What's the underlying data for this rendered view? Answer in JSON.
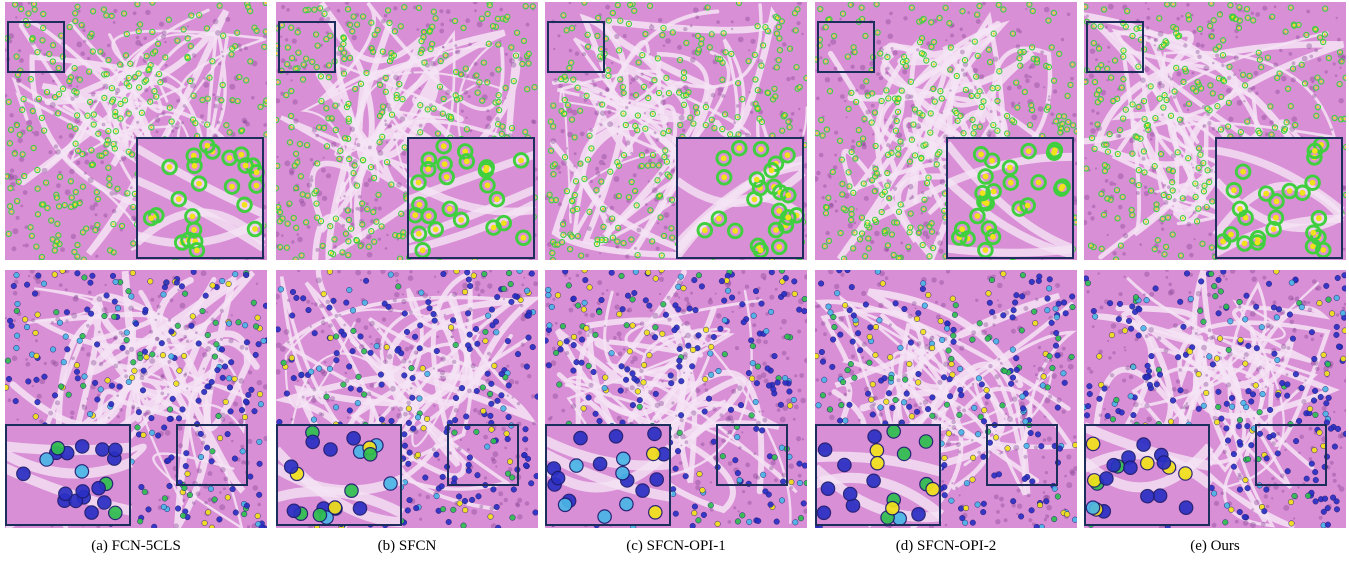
{
  "figure": {
    "panels": [
      {
        "caption": "(a) FCN-5CLS"
      },
      {
        "caption": "(b) SFCN"
      },
      {
        "caption": "(c) SFCN-OPI-1"
      },
      {
        "caption": "(d) SFCN-OPI-2"
      },
      {
        "caption": "(e) Ours"
      }
    ],
    "colors": {
      "tissue_base": "#d98fd6",
      "tissue_stroma": "#f4e4f4",
      "nucleus": "#7a3c8c",
      "detection_green": "#3fcf3f",
      "detection_yellow": "#f2e21a",
      "class_blue": "#2a2fc4",
      "class_cyan": "#4ab6e6",
      "class_green": "#2fbf4f",
      "box_outline": "#1c2f5c"
    }
  }
}
